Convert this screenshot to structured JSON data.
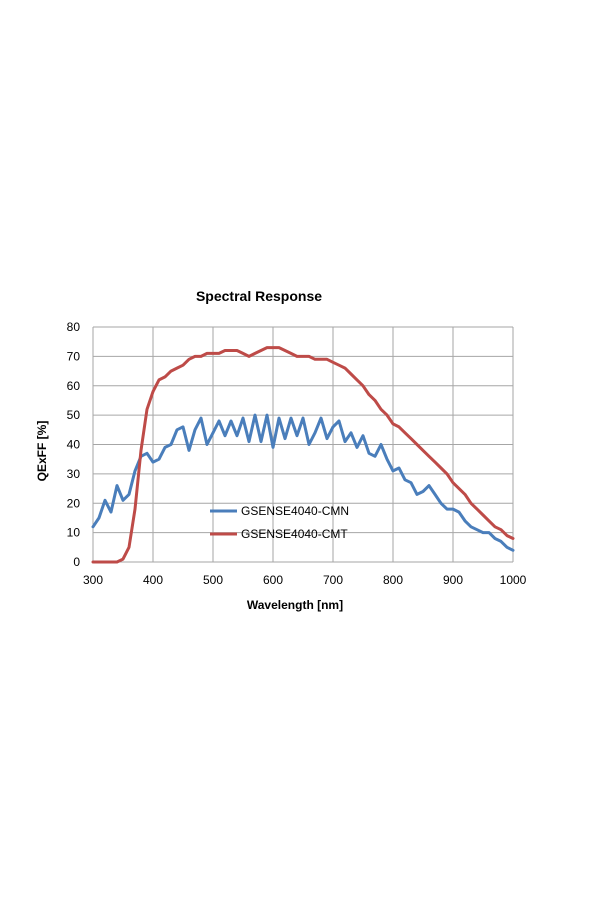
{
  "chart_data": {
    "type": "line",
    "title": "Spectral Response",
    "xlabel": "Wavelength [nm]",
    "ylabel": "QExFF [%]",
    "xlim": [
      300,
      1000
    ],
    "ylim": [
      0,
      80
    ],
    "xticks": [
      300,
      400,
      500,
      600,
      700,
      800,
      900,
      1000
    ],
    "yticks": [
      0,
      10,
      20,
      30,
      40,
      50,
      60,
      70,
      80
    ],
    "grid": true,
    "legend_position": "lower-center",
    "series": [
      {
        "name": "GSENSE4040-CMN",
        "color": "#4a7ebb",
        "x": [
          300,
          310,
          320,
          330,
          340,
          350,
          360,
          370,
          380,
          390,
          400,
          410,
          420,
          430,
          440,
          450,
          460,
          470,
          480,
          490,
          500,
          510,
          520,
          530,
          540,
          550,
          560,
          570,
          580,
          590,
          600,
          610,
          620,
          630,
          640,
          650,
          660,
          670,
          680,
          690,
          700,
          710,
          720,
          730,
          740,
          750,
          760,
          770,
          780,
          790,
          800,
          810,
          820,
          830,
          840,
          850,
          860,
          870,
          880,
          890,
          900,
          910,
          920,
          930,
          940,
          950,
          960,
          970,
          980,
          990,
          1000
        ],
        "values": [
          12,
          15,
          21,
          17,
          26,
          21,
          23,
          31,
          36,
          37,
          34,
          35,
          39,
          40,
          45,
          46,
          38,
          45,
          49,
          40,
          44,
          48,
          43,
          48,
          43,
          49,
          41,
          50,
          41,
          50,
          39,
          49,
          42,
          49,
          43,
          49,
          40,
          44,
          49,
          42,
          46,
          48,
          41,
          44,
          39,
          43,
          37,
          36,
          40,
          35,
          31,
          32,
          28,
          27,
          23,
          24,
          26,
          23,
          20,
          18,
          18,
          17,
          14,
          12,
          11,
          10,
          10,
          8,
          7,
          5,
          4
        ]
      },
      {
        "name": "GSENSE4040-CMT",
        "color": "#be4b48",
        "x": [
          300,
          310,
          320,
          330,
          340,
          350,
          360,
          370,
          380,
          390,
          400,
          410,
          420,
          430,
          440,
          450,
          460,
          470,
          480,
          490,
          500,
          510,
          520,
          530,
          540,
          550,
          560,
          570,
          580,
          590,
          600,
          610,
          620,
          630,
          640,
          650,
          660,
          670,
          680,
          690,
          700,
          710,
          720,
          730,
          740,
          750,
          760,
          770,
          780,
          790,
          800,
          810,
          820,
          830,
          840,
          850,
          860,
          870,
          880,
          890,
          900,
          910,
          920,
          930,
          940,
          950,
          960,
          970,
          980,
          990,
          1000
        ],
        "values": [
          0,
          0,
          0,
          0,
          0,
          1,
          5,
          18,
          38,
          52,
          58,
          62,
          63,
          65,
          66,
          67,
          69,
          70,
          70,
          71,
          71,
          71,
          72,
          72,
          72,
          71,
          70,
          71,
          72,
          73,
          73,
          73,
          72,
          71,
          70,
          70,
          70,
          69,
          69,
          69,
          68,
          67,
          66,
          64,
          62,
          60,
          57,
          55,
          52,
          50,
          47,
          46,
          44,
          42,
          40,
          38,
          36,
          34,
          32,
          30,
          27,
          25,
          23,
          20,
          18,
          16,
          14,
          12,
          11,
          9,
          8
        ]
      }
    ]
  }
}
